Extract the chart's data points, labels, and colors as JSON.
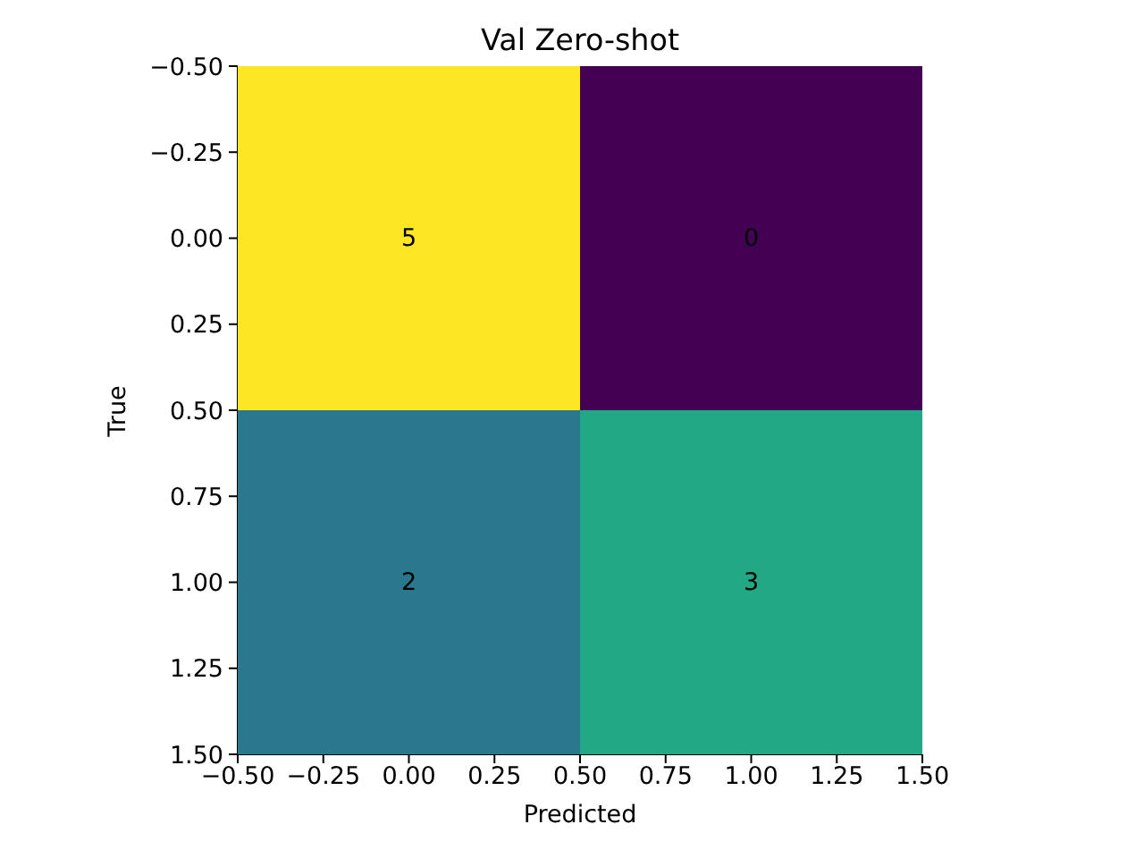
{
  "chart_data": {
    "type": "heatmap",
    "title": "Val Zero-shot",
    "xlabel": "Predicted",
    "ylabel": "True",
    "cells": [
      [
        5,
        0
      ],
      [
        2,
        3
      ]
    ],
    "colors": [
      "#fde725",
      "#440154",
      "#2a788e",
      "#22a884"
    ],
    "data_labels": true,
    "xlim": [
      -0.5,
      1.5
    ],
    "xticks": [
      {
        "value": -0.5,
        "label": "−0.50"
      },
      {
        "value": -0.25,
        "label": "−0.25"
      },
      {
        "value": 0,
        "label": "0.00"
      },
      {
        "value": 0.25,
        "label": "0.25"
      },
      {
        "value": 0.5,
        "label": "0.50"
      },
      {
        "value": 0.75,
        "label": "0.75"
      },
      {
        "value": 1,
        "label": "1.00"
      },
      {
        "value": 1.25,
        "label": "1.25"
      },
      {
        "value": 1.5,
        "label": "1.50"
      }
    ],
    "ylim": [
      1.5,
      -0.5
    ],
    "yticks": [
      {
        "value": -0.5,
        "label": "−0.50"
      },
      {
        "value": -0.25,
        "label": "−0.25"
      },
      {
        "value": 0,
        "label": "0.00"
      },
      {
        "value": 0.25,
        "label": "0.25"
      },
      {
        "value": 0.5,
        "label": "0.50"
      },
      {
        "value": 0.75,
        "label": "0.75"
      },
      {
        "value": 1,
        "label": "1.00"
      },
      {
        "value": 1.25,
        "label": "1.25"
      },
      {
        "value": 1.5,
        "label": "1.50"
      }
    ]
  }
}
